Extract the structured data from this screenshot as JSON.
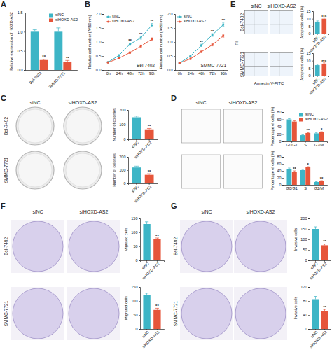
{
  "figure": {
    "panel_labels": [
      "A",
      "B",
      "C",
      "D",
      "E",
      "F",
      "G"
    ],
    "image_grids": [
      {
        "columns": [
          "siNC",
          "siHOXD-AS2"
        ],
        "rows": [
          "Bel-7402",
          "SMMC-7721"
        ]
      },
      {
        "columns": [
          "siNC",
          "siHOXD-AS2"
        ]
      },
      {
        "columns": [
          "siNC",
          "siHOXD-AS2"
        ],
        "rows": [
          "Bel-7402",
          "SMMC-7721"
        ],
        "x_label": "Annexin V-FITC",
        "y_label": "PI"
      },
      {
        "columns": [
          "siNC",
          "siHOXD-AS2"
        ],
        "rows": [
          "Bel-7402",
          "SMMC-7721"
        ]
      },
      {
        "columns": [
          "siNC",
          "siHOXD-AS2"
        ],
        "rows": [
          "Bel-7402",
          "SMMC-7721"
        ]
      }
    ]
  },
  "chart_data": [
    {
      "type": "bar",
      "y_label": "Relative expression of HOXD-AS2",
      "categories": [
        "Bel-7402",
        "SMMC-7721"
      ],
      "series": [
        {
          "name": "siNC",
          "color": "#3db5c6",
          "values": [
            1.0,
            1.0
          ],
          "errors": [
            0.05,
            0.1
          ]
        },
        {
          "name": "siHOXD-AS2",
          "color": "#e6553a",
          "values": [
            0.26,
            0.22
          ],
          "errors": [
            0.02,
            0.03
          ],
          "annotations": [
            "**",
            "**"
          ]
        }
      ],
      "ylim": [
        0,
        1.5
      ],
      "yticks": [
        {
          "value": 0,
          "label": "0.0"
        },
        {
          "value": 0.5,
          "label": "0.5"
        },
        {
          "value": 1,
          "label": "1.0"
        },
        {
          "value": 1.5,
          "label": "1.5"
        }
      ],
      "legend": "upper right"
    },
    {
      "type": "line",
      "title": "Bel-7402",
      "y_label": "Relative cell number (A450 nm)",
      "categories": [
        "0h",
        "24h",
        "48h",
        "72h",
        "96h"
      ],
      "series": [
        {
          "name": "siNC",
          "color": "#3db5c6",
          "marker": "circle",
          "values": [
            0.28,
            0.52,
            0.92,
            1.15,
            1.6
          ],
          "errors": [
            0.02,
            0.03,
            0.04,
            0.05,
            0.06
          ]
        },
        {
          "name": "siHOXD-AS2",
          "color": "#e6553a",
          "marker": "circle",
          "values": [
            0.27,
            0.42,
            0.62,
            0.85,
            1.1
          ],
          "errors": [
            0.02,
            0.03,
            0.03,
            0.04,
            0.05
          ]
        }
      ],
      "annotations": [
        null,
        null,
        "**",
        "**",
        "**"
      ],
      "ylim": [
        0,
        2
      ],
      "yticks": [
        {
          "value": 0,
          "label": "0.0"
        },
        {
          "value": 0.5,
          "label": "0.5"
        },
        {
          "value": 1,
          "label": "1.0"
        },
        {
          "value": 1.5,
          "label": "1.5"
        },
        {
          "value": 2,
          "label": "2.0"
        }
      ],
      "legend": "upper left"
    },
    {
      "type": "line",
      "title": "SMMC-7721",
      "y_label": "Relative cell number (A450 nm)",
      "categories": [
        "0h",
        "24h",
        "48h",
        "72h",
        "96h"
      ],
      "series": [
        {
          "name": "siNC",
          "color": "#3db5c6",
          "marker": "circle",
          "values": [
            0.25,
            0.5,
            0.88,
            1.25,
            1.62
          ],
          "errors": [
            0.02,
            0.03,
            0.04,
            0.05,
            0.06
          ]
        },
        {
          "name": "siHOXD-AS2",
          "color": "#e6553a",
          "marker": "circle",
          "values": [
            0.25,
            0.4,
            0.65,
            0.9,
            1.22
          ],
          "errors": [
            0.02,
            0.03,
            0.03,
            0.04,
            0.05
          ]
        }
      ],
      "annotations": [
        null,
        null,
        "**",
        "**",
        "**"
      ],
      "ylim": [
        0,
        2
      ],
      "yticks": [
        {
          "value": 0,
          "label": "0.0"
        },
        {
          "value": 0.5,
          "label": "0.5"
        },
        {
          "value": 1,
          "label": "1.0"
        },
        {
          "value": 1.5,
          "label": "1.5"
        },
        {
          "value": 2,
          "label": "2.0"
        }
      ],
      "legend": "upper left"
    },
    {
      "type": "bar",
      "y_label": "Number of colonies",
      "categories": [
        "siNC",
        "siHOXD-AS2"
      ],
      "values": [
        150,
        68
      ],
      "errors": [
        8,
        6
      ],
      "colors": [
        "#3db5c6",
        "#e6553a"
      ],
      "annotations": [
        null,
        "**"
      ],
      "ylim": [
        0,
        200
      ],
      "yticks": [
        0,
        100,
        200
      ]
    },
    {
      "type": "bar",
      "y_label": "Number of colonies",
      "categories": [
        "siNC",
        "siHOXD-AS2"
      ],
      "values": [
        120,
        65
      ],
      "errors": [
        10,
        8
      ],
      "colors": [
        "#3db5c6",
        "#e6553a"
      ],
      "annotations": [
        null,
        "**"
      ],
      "ylim": [
        0,
        200
      ],
      "yticks": [
        0,
        100,
        200
      ]
    },
    {
      "type": "bar",
      "y_label": "Percentage of cells (%)",
      "categories": [
        "G0/G1",
        "S",
        "G2/M"
      ],
      "series": [
        {
          "name": "siNC",
          "color": "#3db5c6",
          "values": [
            60,
            17,
            22
          ],
          "errors": [
            2,
            1,
            1.5
          ]
        },
        {
          "name": "siHOXD-AS2",
          "color": "#e6553a",
          "values": [
            54,
            23,
            25
          ],
          "errors": [
            2,
            1,
            1.5
          ],
          "annotations": [
            null,
            "**",
            "*"
          ]
        }
      ],
      "ylim": [
        0,
        80
      ],
      "yticks": [
        0,
        20,
        40,
        60,
        80
      ],
      "legend": "upper right"
    },
    {
      "type": "bar",
      "y_label": "Percentage of cells (%)",
      "categories": [
        "G0/G1",
        "S",
        "G2/M"
      ],
      "series": [
        {
          "name": "siNC",
          "color": "#3db5c6",
          "values": [
            46,
            42,
            8
          ],
          "errors": [
            2,
            2,
            1
          ]
        },
        {
          "name": "siHOXD-AS2",
          "color": "#e6553a",
          "values": [
            38,
            50,
            11
          ],
          "errors": [
            2,
            2,
            1
          ],
          "annotations": [
            "**",
            "*",
            "**"
          ]
        }
      ],
      "ylim": [
        0,
        80
      ],
      "yticks": [
        0,
        20,
        40,
        60,
        80
      ]
    },
    {
      "type": "bar",
      "y_label": "Apoptosis cells (%)",
      "categories": [
        "siNC",
        "siHOXD-AS2"
      ],
      "values": [
        8,
        10
      ],
      "errors": [
        0.5,
        0.6
      ],
      "colors": [
        "#3db5c6",
        "#e6553a"
      ],
      "annotations": [
        null,
        "ns"
      ],
      "ylim": [
        0,
        15
      ],
      "yticks": [
        0,
        5,
        10,
        15
      ]
    },
    {
      "type": "bar",
      "y_label": "Apoptosis cells (%)",
      "categories": [
        "siNC",
        "siHOXD-AS2"
      ],
      "values": [
        7,
        8
      ],
      "errors": [
        0.6,
        0.5
      ],
      "colors": [
        "#3db5c6",
        "#e6553a"
      ],
      "annotations": [
        null,
        "ns"
      ],
      "ylim": [
        0,
        15
      ],
      "yticks": [
        0,
        5,
        10,
        15
      ]
    },
    {
      "type": "bar",
      "y_label": "Migrated cells",
      "categories": [
        "siNC",
        "siHOXD-AS2"
      ],
      "values": [
        130,
        75
      ],
      "errors": [
        8,
        5
      ],
      "colors": [
        "#3db5c6",
        "#e6553a"
      ],
      "annotations": [
        null,
        "**"
      ],
      "ylim": [
        0,
        150
      ],
      "yticks": [
        0,
        50,
        100,
        150
      ]
    },
    {
      "type": "bar",
      "y_label": "Migrated cells",
      "categories": [
        "siNC",
        "siHOXD-AS2"
      ],
      "values": [
        120,
        68
      ],
      "errors": [
        8,
        6
      ],
      "colors": [
        "#3db5c6",
        "#e6553a"
      ],
      "annotations": [
        null,
        "**"
      ],
      "ylim": [
        0,
        150
      ],
      "yticks": [
        0,
        50,
        100,
        150
      ]
    },
    {
      "type": "bar",
      "y_label": "Invasive cells",
      "categories": [
        "siNC",
        "siHOXD-AS2"
      ],
      "values": [
        150,
        72
      ],
      "errors": [
        10,
        6
      ],
      "colors": [
        "#3db5c6",
        "#e6553a"
      ],
      "annotations": [
        null,
        "**"
      ],
      "ylim": [
        0,
        200
      ],
      "yticks": [
        0,
        50,
        100,
        150,
        200
      ]
    },
    {
      "type": "bar",
      "y_label": "Invasive cells",
      "categories": [
        "siNC",
        "siHOXD-AS2"
      ],
      "values": [
        85,
        50
      ],
      "errors": [
        8,
        6
      ],
      "colors": [
        "#3db5c6",
        "#e6553a"
      ],
      "annotations": [
        null,
        "**"
      ],
      "ylim": [
        0,
        120
      ],
      "yticks": [
        0,
        40,
        80,
        120
      ]
    }
  ]
}
